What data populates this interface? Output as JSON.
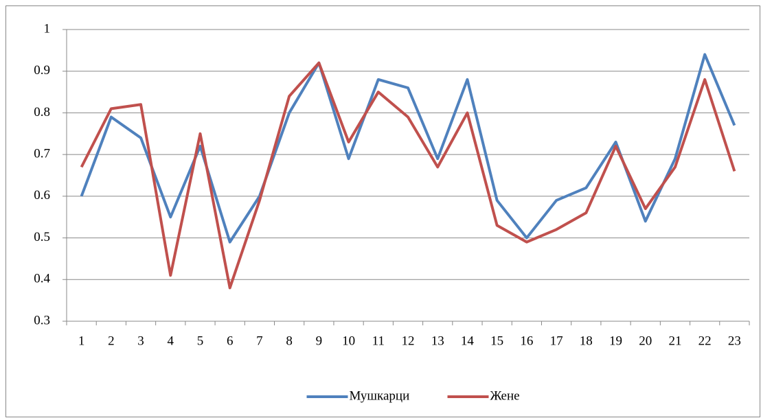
{
  "chart_data": {
    "type": "line",
    "categories": [
      "1",
      "2",
      "3",
      "4",
      "5",
      "6",
      "7",
      "8",
      "9",
      "10",
      "11",
      "12",
      "13",
      "14",
      "15",
      "16",
      "17",
      "18",
      "19",
      "20",
      "21",
      "22",
      "23"
    ],
    "series": [
      {
        "name": "Мушкарци",
        "color": "#4f81bd",
        "values": [
          0.6,
          0.79,
          0.74,
          0.55,
          0.72,
          0.49,
          0.6,
          0.8,
          0.92,
          0.69,
          0.88,
          0.86,
          0.69,
          0.88,
          0.59,
          0.5,
          0.59,
          0.62,
          0.73,
          0.54,
          0.69,
          0.94,
          0.77
        ]
      },
      {
        "name": "Жене",
        "color": "#c0504d",
        "values": [
          0.67,
          0.81,
          0.82,
          0.41,
          0.75,
          0.38,
          0.59,
          0.84,
          0.92,
          0.73,
          0.85,
          0.79,
          0.67,
          0.8,
          0.53,
          0.49,
          0.52,
          0.56,
          0.72,
          0.57,
          0.67,
          0.88,
          0.66
        ]
      }
    ],
    "ylim": [
      0.3,
      1
    ],
    "yticks": [
      0.3,
      0.4,
      0.5,
      0.6,
      0.7,
      0.8,
      0.9,
      1
    ],
    "grid": true,
    "legend": "bottom"
  }
}
